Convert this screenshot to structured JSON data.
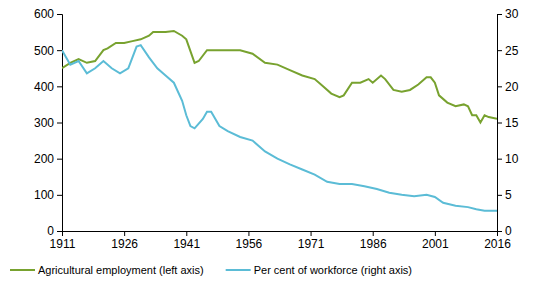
{
  "chart_data": {
    "type": "line",
    "xlim": [
      1911,
      2016
    ],
    "xticks": [
      1911,
      1926,
      1941,
      1956,
      1971,
      1986,
      2001,
      2016
    ],
    "ylim": [
      0,
      600
    ],
    "yticks": [
      0,
      100,
      200,
      300,
      400,
      500,
      600
    ],
    "y2lim": [
      0,
      30
    ],
    "y2ticks": [
      0,
      5,
      10,
      15,
      20,
      25,
      30
    ],
    "legend": "bottom",
    "series": [
      {
        "name": "Agricultural employment (left axis)",
        "color": "#78a22f",
        "axis": "y",
        "x": [
          1911,
          1913,
          1915,
          1917,
          1919,
          1921,
          1922,
          1924,
          1926,
          1928,
          1930,
          1932,
          1933,
          1936,
          1938,
          1940,
          1941,
          1943,
          1944,
          1946,
          1948,
          1951,
          1954,
          1957,
          1960,
          1963,
          1966,
          1969,
          1972,
          1974,
          1976,
          1978,
          1979,
          1981,
          1983,
          1985,
          1986,
          1988,
          1989,
          1991,
          1993,
          1995,
          1997,
          1999,
          2000,
          2001,
          2002,
          2004,
          2006,
          2008,
          2009,
          2010,
          2011,
          2012,
          2013,
          2014,
          2016
        ],
        "values": [
          450,
          465,
          475,
          465,
          470,
          500,
          505,
          520,
          520,
          525,
          530,
          540,
          550,
          550,
          553,
          540,
          530,
          465,
          470,
          500,
          500,
          500,
          500,
          490,
          465,
          460,
          445,
          430,
          420,
          400,
          380,
          370,
          375,
          410,
          410,
          420,
          410,
          430,
          420,
          390,
          385,
          390,
          405,
          425,
          425,
          410,
          375,
          355,
          345,
          350,
          345,
          320,
          320,
          300,
          320,
          315,
          310
        ]
      },
      {
        "name": "Per cent of workforce (right axis)",
        "color": "#5bbcd6",
        "axis": "y2",
        "x": [
          1911,
          1913,
          1915,
          1917,
          1919,
          1921,
          1923,
          1925,
          1927,
          1929,
          1930,
          1932,
          1934,
          1936,
          1938,
          1940,
          1941,
          1942,
          1943,
          1945,
          1946,
          1947,
          1949,
          1951,
          1954,
          1957,
          1960,
          1963,
          1966,
          1969,
          1972,
          1975,
          1978,
          1981,
          1984,
          1987,
          1990,
          1993,
          1996,
          1999,
          2001,
          2003,
          2006,
          2009,
          2011,
          2013,
          2016
        ],
        "values": [
          25,
          23,
          23.5,
          21.8,
          22.5,
          23.5,
          22.5,
          21.8,
          22.5,
          25.5,
          25.7,
          24,
          22.5,
          21.5,
          20.5,
          18,
          16,
          14.5,
          14.2,
          15.5,
          16.5,
          16.5,
          14.5,
          13.8,
          13,
          12.5,
          11,
          10,
          9.2,
          8.5,
          7.8,
          6.8,
          6.5,
          6.5,
          6.2,
          5.8,
          5.3,
          5,
          4.8,
          5,
          4.7,
          3.9,
          3.5,
          3.3,
          3,
          2.8,
          2.8
        ]
      }
    ]
  }
}
